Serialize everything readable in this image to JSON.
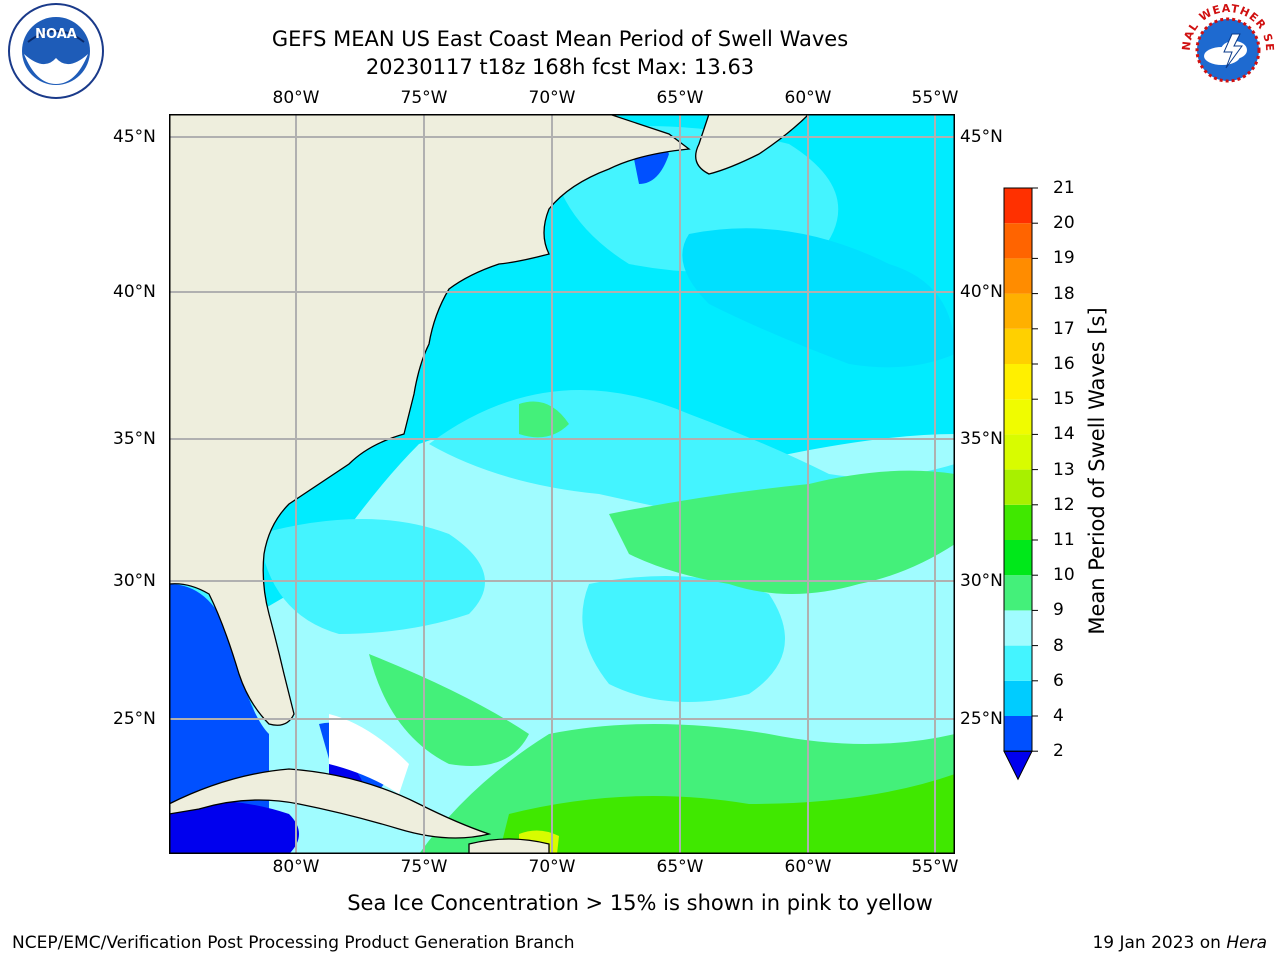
{
  "title_line1": "GEFS MEAN US East Coast Mean Period of Swell Waves",
  "title_line2": "20230117 t18z 168h fcst   Max: 13.63",
  "longitude_labels": [
    "80°W",
    "75°W",
    "70°W",
    "65°W",
    "60°W",
    "55°W"
  ],
  "latitude_labels": [
    "45°N",
    "40°N",
    "35°N",
    "30°N",
    "25°N"
  ],
  "colorbar": {
    "label": "Mean Period of Swell Waves [s]",
    "ticks": [
      "2",
      "4",
      "6",
      "8",
      "9",
      "10",
      "11",
      "12",
      "13",
      "14",
      "15",
      "16",
      "17",
      "18",
      "19",
      "20",
      "21"
    ],
    "colors": [
      "#0050ff",
      "#00ccff",
      "#44f4ff",
      "#a0fcff",
      "#44f07a",
      "#00e81a",
      "#40e800",
      "#a8f000",
      "#d8fc00",
      "#f0fc00",
      "#fff000",
      "#ffd000",
      "#ffb000",
      "#ff8c00",
      "#ff6400",
      "#ff3000"
    ],
    "under_color": "#0000ee"
  },
  "note": "Sea Ice Concentration > 15% is shown in pink to yellow",
  "credit": "NCEP/EMC/Verification Post Processing Product Generation Branch",
  "date_text": "19 Jan 2023 on ",
  "machine": "Hera",
  "logos": {
    "left": "NOAA",
    "right_text": "NATIONAL WEATHER SERVICE"
  },
  "colors": {
    "land": "#eeeedd",
    "grid": "#b0b0b0"
  }
}
